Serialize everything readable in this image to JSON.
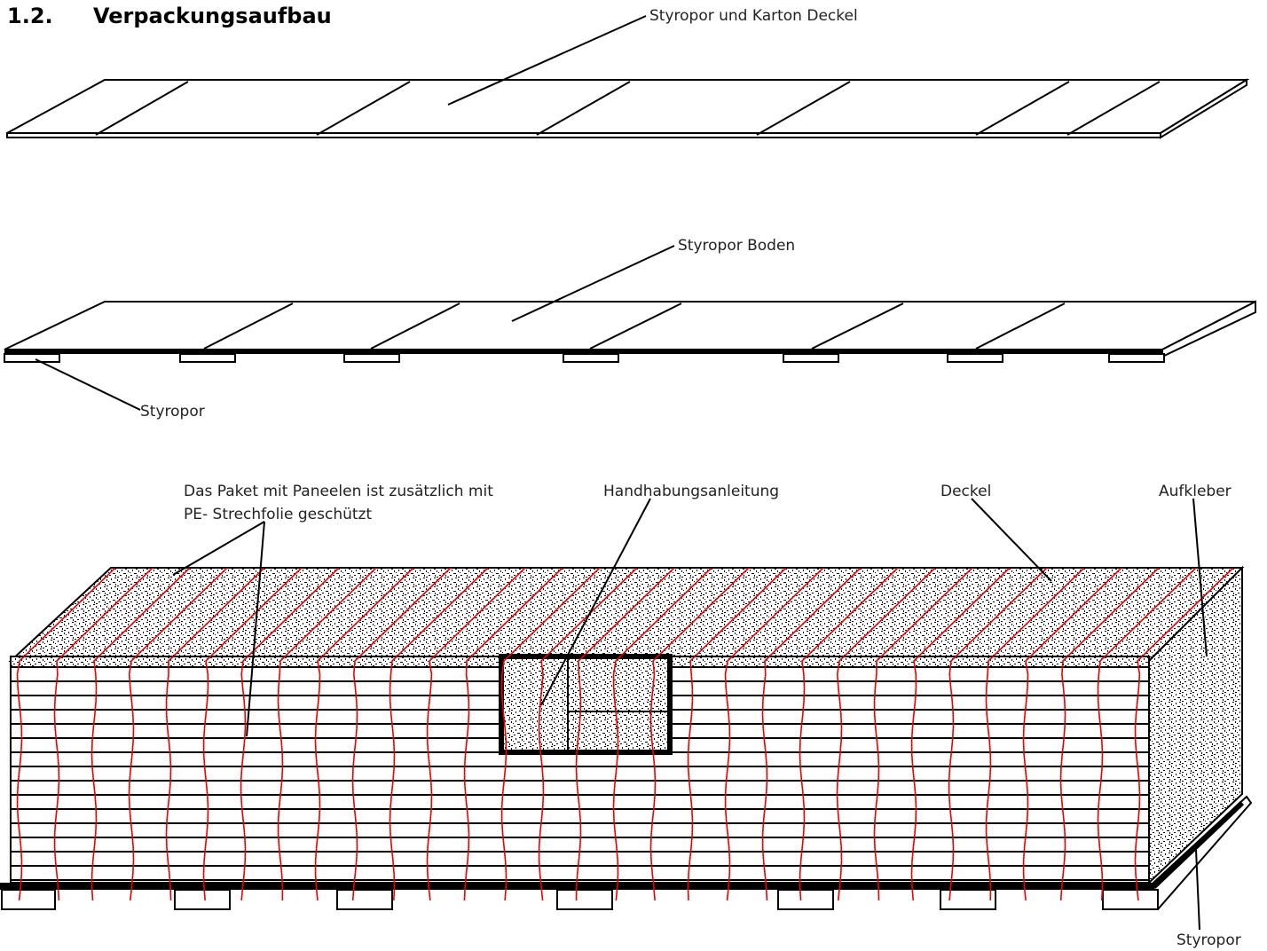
{
  "header": {
    "number": "1.2.",
    "title": "Verpackungsaufbau"
  },
  "labels": {
    "lid": "Styropor und Karton Deckel",
    "floor": "Styropor Boden",
    "floor_blocks": "Styropor",
    "film": [
      "Das Paket mit  Paneelen ist zusätzlich mit",
      "PE- Strechfolie geschützt"
    ],
    "handling": "Handhabungsanleitung",
    "cover": "Deckel",
    "sticker": "Aufkleber",
    "base_blocks": "Styropor"
  }
}
